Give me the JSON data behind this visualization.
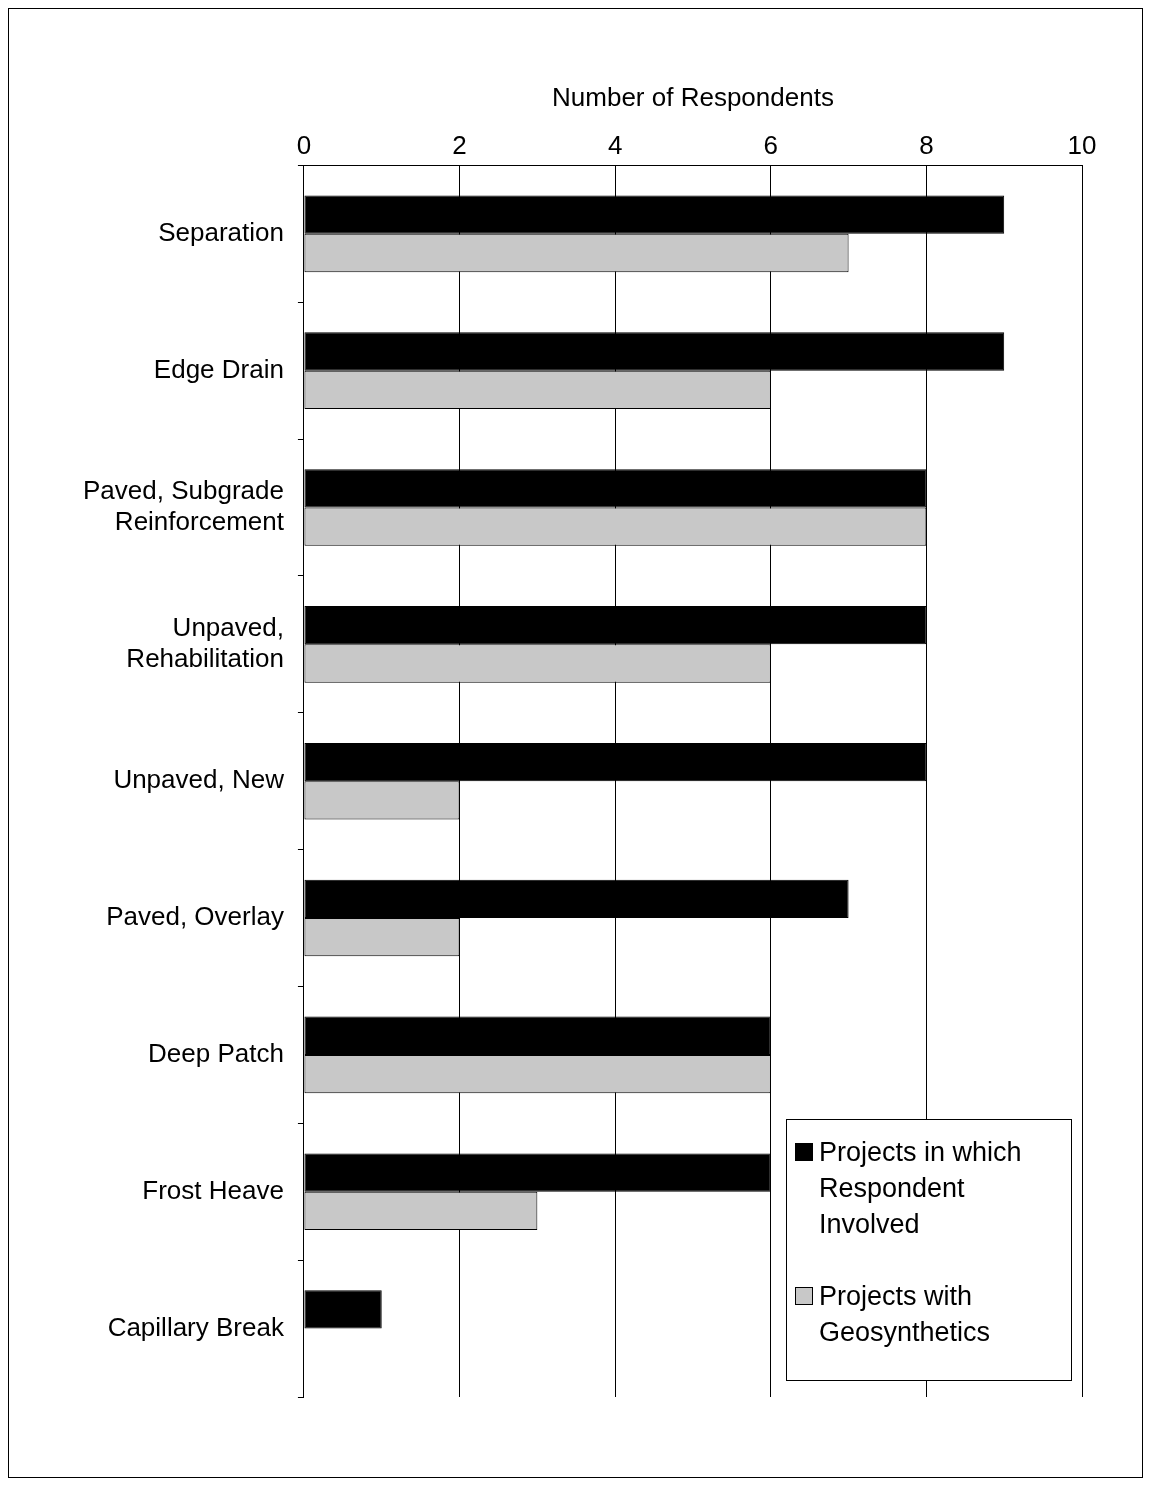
{
  "chart_data": {
    "type": "bar",
    "orientation": "horizontal",
    "xlabel": "Number of Respondents",
    "categories": [
      "Separation",
      "Edge Drain",
      "Paved, Subgrade Reinforcement",
      "Unpaved, Rehabilitation",
      "Unpaved, New",
      "Paved, Overlay",
      "Deep Patch",
      "Frost Heave",
      "Capillary Break"
    ],
    "series": [
      {
        "name": "Projects in which Respondent Involved",
        "color": "#000000",
        "values": [
          9,
          9,
          8,
          8,
          8,
          7,
          6,
          6,
          1
        ]
      },
      {
        "name": "Projects with Geosynthetics",
        "color": "#c8c8c8",
        "values": [
          7,
          6,
          8,
          6,
          2,
          2,
          6,
          3,
          0
        ]
      }
    ],
    "xlim": [
      0,
      10
    ],
    "xticks": [
      0,
      2,
      4,
      6,
      8,
      10
    ],
    "grid": "x",
    "legend": "bottom right"
  }
}
